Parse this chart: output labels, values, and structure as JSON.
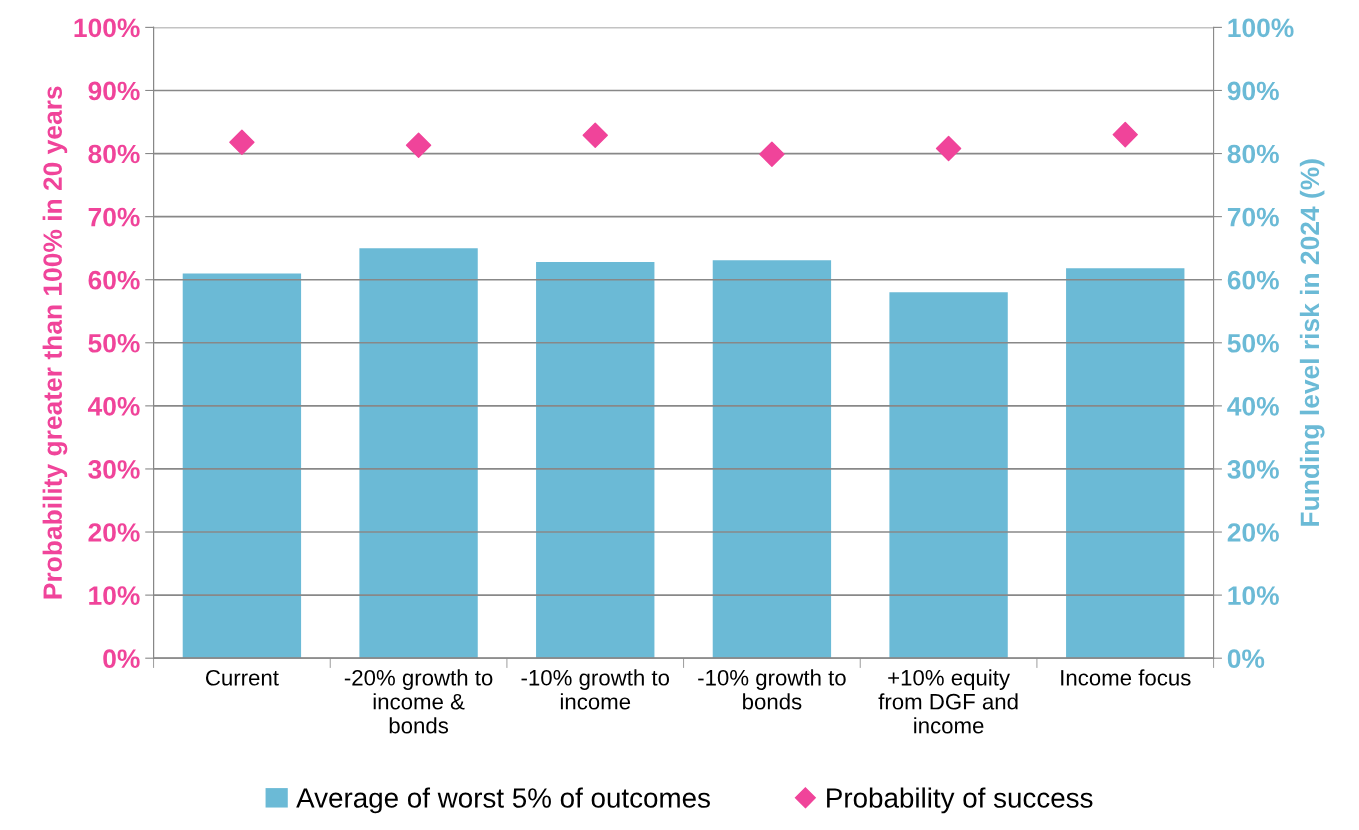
{
  "chart_data": {
    "type": "bar",
    "categories": [
      "Current",
      "-20% growth to\nincome &\nbonds",
      "-10% growth to\nincome",
      "-10% growth to\nbonds",
      "+10% equity\nfrom DGF and\nincome",
      "Income focus"
    ],
    "ylabel": "Probability greater than 100% in 20 years",
    "y2label": "Funding level risk in 2024 (%)",
    "series": [
      {
        "name": "Average of worst 5% of outcomes",
        "axis": "y2",
        "color": "#6bbad6",
        "values": [
          61.0,
          65.0,
          62.8,
          63.1,
          58.0,
          61.8
        ]
      },
      {
        "name": "Probability of success",
        "type": "scatter",
        "axis": "y",
        "color": "#f0449a",
        "marker": "diamond",
        "values": [
          81.8,
          81.3,
          82.9,
          79.9,
          80.8,
          83.0
        ]
      }
    ],
    "ylim": [
      0,
      100
    ],
    "yticks": [
      {
        "value": 0,
        "label": "0%"
      },
      {
        "value": 10,
        "label": "10%"
      },
      {
        "value": 20,
        "label": "20%"
      },
      {
        "value": 30,
        "label": "30%"
      },
      {
        "value": 40,
        "label": "40%"
      },
      {
        "value": 50,
        "label": "50%"
      },
      {
        "value": 60,
        "label": "60%"
      },
      {
        "value": 70,
        "label": "70%"
      },
      {
        "value": 80,
        "label": "80%"
      },
      {
        "value": 90,
        "label": "90%"
      },
      {
        "value": 100,
        "label": "100%"
      }
    ],
    "y2lim": [
      0,
      100
    ],
    "y2ticks": [
      {
        "value": 0,
        "label": "0%"
      },
      {
        "value": 10,
        "label": "10%"
      },
      {
        "value": 20,
        "label": "20%"
      },
      {
        "value": 30,
        "label": "30%"
      },
      {
        "value": 40,
        "label": "40%"
      },
      {
        "value": 50,
        "label": "50%"
      },
      {
        "value": 60,
        "label": "60%"
      },
      {
        "value": 70,
        "label": "70%"
      },
      {
        "value": 80,
        "label": "80%"
      },
      {
        "value": 90,
        "label": "90%"
      },
      {
        "value": 100,
        "label": "100%"
      }
    ],
    "grid": "y",
    "legend": "bottom"
  }
}
